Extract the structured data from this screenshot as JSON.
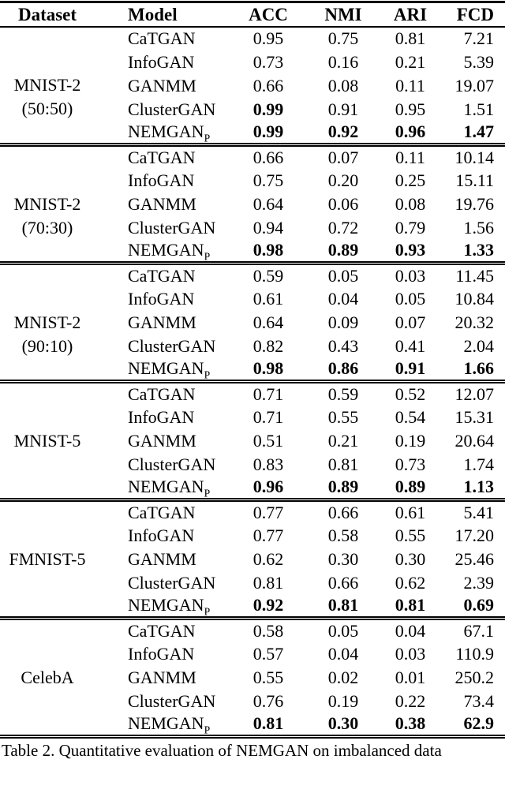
{
  "table": {
    "columns": [
      "Dataset",
      "Model",
      "ACC",
      "NMI",
      "ARI",
      "FCD"
    ],
    "groups": [
      {
        "dataset": [
          "MNIST-2",
          "(50:50)"
        ],
        "rows": [
          {
            "model": "CaTGAN",
            "values": [
              "0.95",
              "0.75",
              "0.81",
              "7.21"
            ],
            "bold": [
              false,
              false,
              false,
              false
            ]
          },
          {
            "model": "InfoGAN",
            "values": [
              "0.73",
              "0.16",
              "0.21",
              "5.39"
            ],
            "bold": [
              false,
              false,
              false,
              false
            ]
          },
          {
            "model": "GANMM",
            "values": [
              "0.66",
              "0.08",
              "0.11",
              "19.07"
            ],
            "bold": [
              false,
              false,
              false,
              false
            ]
          },
          {
            "model": "ClusterGAN",
            "values": [
              "0.99",
              "0.91",
              "0.95",
              "1.51"
            ],
            "bold": [
              true,
              false,
              false,
              false
            ]
          },
          {
            "model": "NEMGAN",
            "model_sub": "P",
            "values": [
              "0.99",
              "0.92",
              "0.96",
              "1.47"
            ],
            "bold": [
              true,
              true,
              true,
              true
            ]
          }
        ]
      },
      {
        "dataset": [
          "MNIST-2",
          "(70:30)"
        ],
        "rows": [
          {
            "model": "CaTGAN",
            "values": [
              "0.66",
              "0.07",
              "0.11",
              "10.14"
            ],
            "bold": [
              false,
              false,
              false,
              false
            ]
          },
          {
            "model": "InfoGAN",
            "values": [
              "0.75",
              "0.20",
              "0.25",
              "15.11"
            ],
            "bold": [
              false,
              false,
              false,
              false
            ]
          },
          {
            "model": "GANMM",
            "values": [
              "0.64",
              "0.06",
              "0.08",
              "19.76"
            ],
            "bold": [
              false,
              false,
              false,
              false
            ]
          },
          {
            "model": "ClusterGAN",
            "values": [
              "0.94",
              "0.72",
              "0.79",
              "1.56"
            ],
            "bold": [
              false,
              false,
              false,
              false
            ]
          },
          {
            "model": "NEMGAN",
            "model_sub": "P",
            "values": [
              "0.98",
              "0.89",
              "0.93",
              "1.33"
            ],
            "bold": [
              true,
              true,
              true,
              true
            ]
          }
        ]
      },
      {
        "dataset": [
          "MNIST-2",
          "(90:10)"
        ],
        "rows": [
          {
            "model": "CaTGAN",
            "values": [
              "0.59",
              "0.05",
              "0.03",
              "11.45"
            ],
            "bold": [
              false,
              false,
              false,
              false
            ]
          },
          {
            "model": "InfoGAN",
            "values": [
              "0.61",
              "0.04",
              "0.05",
              "10.84"
            ],
            "bold": [
              false,
              false,
              false,
              false
            ]
          },
          {
            "model": "GANMM",
            "values": [
              "0.64",
              "0.09",
              "0.07",
              "20.32"
            ],
            "bold": [
              false,
              false,
              false,
              false
            ]
          },
          {
            "model": "ClusterGAN",
            "values": [
              "0.82",
              "0.43",
              "0.41",
              "2.04"
            ],
            "bold": [
              false,
              false,
              false,
              false
            ]
          },
          {
            "model": "NEMGAN",
            "model_sub": "P",
            "values": [
              "0.98",
              "0.86",
              "0.91",
              "1.66"
            ],
            "bold": [
              true,
              true,
              true,
              true
            ]
          }
        ]
      },
      {
        "dataset": [
          "MNIST-5"
        ],
        "rows": [
          {
            "model": "CaTGAN",
            "values": [
              "0.71",
              "0.59",
              "0.52",
              "12.07"
            ],
            "bold": [
              false,
              false,
              false,
              false
            ]
          },
          {
            "model": "InfoGAN",
            "values": [
              "0.71",
              "0.55",
              "0.54",
              "15.31"
            ],
            "bold": [
              false,
              false,
              false,
              false
            ]
          },
          {
            "model": "GANMM",
            "values": [
              "0.51",
              "0.21",
              "0.19",
              "20.64"
            ],
            "bold": [
              false,
              false,
              false,
              false
            ]
          },
          {
            "model": "ClusterGAN",
            "values": [
              "0.83",
              "0.81",
              "0.73",
              "1.74"
            ],
            "bold": [
              false,
              false,
              false,
              false
            ]
          },
          {
            "model": "NEMGAN",
            "model_sub": "P",
            "values": [
              "0.96",
              "0.89",
              "0.89",
              "1.13"
            ],
            "bold": [
              true,
              true,
              true,
              true
            ]
          }
        ]
      },
      {
        "dataset": [
          "FMNIST-5"
        ],
        "rows": [
          {
            "model": "CaTGAN",
            "values": [
              "0.77",
              "0.66",
              "0.61",
              "5.41"
            ],
            "bold": [
              false,
              false,
              false,
              false
            ]
          },
          {
            "model": "InfoGAN",
            "values": [
              "0.77",
              "0.58",
              "0.55",
              "17.20"
            ],
            "bold": [
              false,
              false,
              false,
              false
            ]
          },
          {
            "model": "GANMM",
            "values": [
              "0.62",
              "0.30",
              "0.30",
              "25.46"
            ],
            "bold": [
              false,
              false,
              false,
              false
            ]
          },
          {
            "model": "ClusterGAN",
            "values": [
              "0.81",
              "0.66",
              "0.62",
              "2.39"
            ],
            "bold": [
              false,
              false,
              false,
              false
            ]
          },
          {
            "model": "NEMGAN",
            "model_sub": "P",
            "values": [
              "0.92",
              "0.81",
              "0.81",
              "0.69"
            ],
            "bold": [
              true,
              true,
              true,
              true
            ]
          }
        ]
      },
      {
        "dataset": [
          "CelebA"
        ],
        "rows": [
          {
            "model": "CaTGAN",
            "values": [
              "0.58",
              "0.05",
              "0.04",
              "67.1"
            ],
            "bold": [
              false,
              false,
              false,
              false
            ]
          },
          {
            "model": "InfoGAN",
            "values": [
              "0.57",
              "0.04",
              "0.03",
              "110.9"
            ],
            "bold": [
              false,
              false,
              false,
              false
            ]
          },
          {
            "model": "GANMM",
            "values": [
              "0.55",
              "0.02",
              "0.01",
              "250.2"
            ],
            "bold": [
              false,
              false,
              false,
              false
            ]
          },
          {
            "model": "ClusterGAN",
            "values": [
              "0.76",
              "0.19",
              "0.22",
              "73.4"
            ],
            "bold": [
              false,
              false,
              false,
              false
            ]
          },
          {
            "model": "NEMGAN",
            "model_sub": "P",
            "values": [
              "0.81",
              "0.30",
              "0.38",
              "62.9"
            ],
            "bold": [
              true,
              true,
              true,
              true
            ]
          }
        ]
      }
    ]
  },
  "caption": "Table 2. Quantitative evaluation of NEMGAN on imbalanced data"
}
